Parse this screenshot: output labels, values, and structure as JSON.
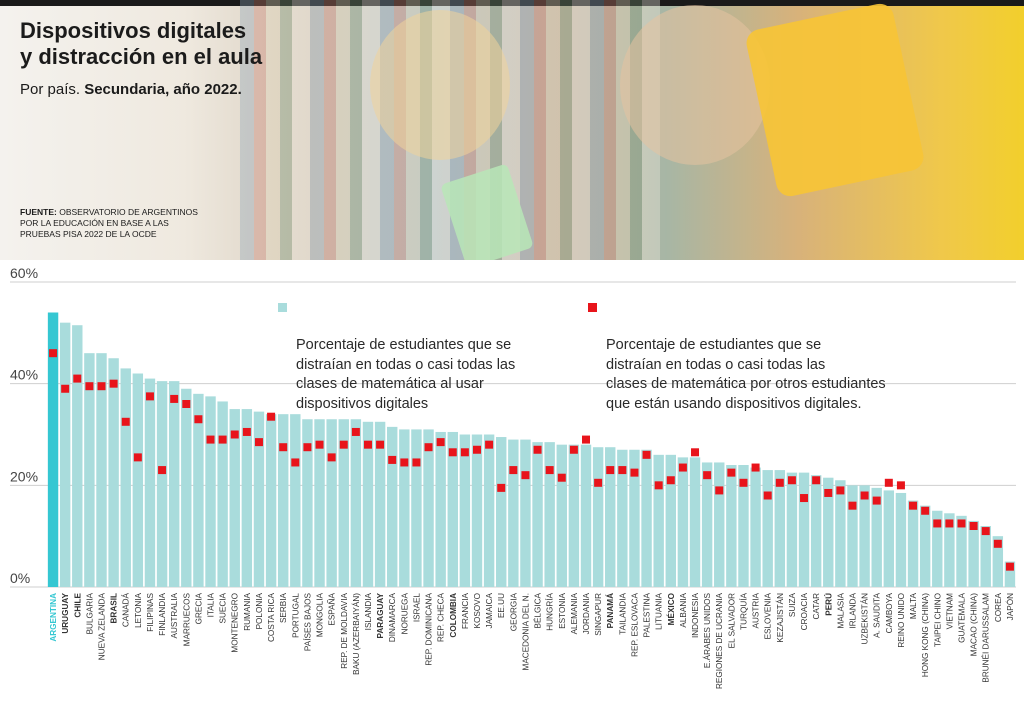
{
  "header": {
    "title": "Dispositivos digitales\ny distracción en el aula",
    "subtitle_prefix": "Por país.",
    "subtitle_bold": "Secundaria, año 2022.",
    "source_label": "FUENTE:",
    "source_text": "OBSERVATORIO DE ARGENTINOS\nPOR LA EDUCACIÓN EN BASE A LAS\nPRUEBAS PISA 2022 DE LA OCDE"
  },
  "colors": {
    "bar": "#a9dcdc",
    "bar_highlight": "#35c7d2",
    "marker": "#e8141b",
    "grid": "#cfcfcf",
    "highlight_label": "#35c7d2"
  },
  "chart_data": {
    "type": "bar",
    "ylim": [
      0,
      60
    ],
    "yticks": [
      "0%",
      "20%",
      "40%",
      "60%"
    ],
    "grid": true,
    "legend_placement": "top-center",
    "categories": [
      "ARGENTINA",
      "URUGUAY",
      "CHILE",
      "BULGARIA",
      "NUEVA ZELANDA",
      "BRASIL",
      "CANADÁ",
      "LETONIA",
      "FILIPINAS",
      "FINLANDIA",
      "AUSTRALIA",
      "MARRUECOS",
      "GRECIA",
      "ITALIA",
      "SUECIA",
      "MONTENEGRO",
      "RUMANIA",
      "POLONIA",
      "COSTA RICA",
      "SERBIA",
      "PORTUGAL",
      "PAÍSES BAJOS",
      "MONGOLIA",
      "ESPAÑA",
      "REP. DE MOLDAVIA",
      "BAKU (AZERBAIYÁN)",
      "ISLANDIA",
      "PARAGUAY",
      "DINAMARCA",
      "NORUEGA",
      "ISRAEL",
      "REP. DOMINICANA",
      "REP. CHECA",
      "COLOMBIA",
      "FRANCIA",
      "KOSOVO",
      "JAMAICA",
      "EE.UU",
      "GEORGIA",
      "MACEDONIA DEL N.",
      "BÉLGICA",
      "HUNGRÍA",
      "ESTONIA",
      "ALEMANIA",
      "JORDANIA",
      "SINGAPUR",
      "PANAMÁ",
      "TAILANDIA",
      "REP. ESLOVACA",
      "PALESTINA",
      "LITUANIA",
      "MÉXICO",
      "ALBANIA",
      "INDONESIA",
      "E.ÁRABES UNIDOS",
      "REGIONES DE UCRANIA",
      "EL SALVADOR",
      "TURQUÍA",
      "AUSTRIA",
      "ESLOVENIA",
      "KEZAJISTÁN",
      "SUIZA",
      "CROACIA",
      "CATAR",
      "PERÚ",
      "MALASIA",
      "IRLANDA",
      "UZBEKISTÁN",
      "A. SAUDITA",
      "CAMBOYA",
      "REINO UNIDO",
      "MALTA",
      "HONG KONG (CHINA)",
      "TAIPEI CHINO",
      "VIETNAM",
      "GUATEMALA",
      "MACAO (CHINA)",
      "BRUNÉI DARUSSALAM",
      "COREA",
      "JAPÓN"
    ],
    "bold_categories": [
      "ARGENTINA",
      "URUGUAY",
      "CHILE",
      "BRASIL",
      "PARAGUAY",
      "COLOMBIA",
      "PANAMÁ",
      "MÉXICO",
      "PERÚ"
    ],
    "highlight_category": "ARGENTINA",
    "series": [
      {
        "name": "Porcentaje de estudiantes que se\ndistraían en todas o casi todas las\nclases de matemática al usar\ndispositivos digitales",
        "values": [
          54,
          52,
          51.5,
          46,
          46,
          45,
          43,
          42,
          41,
          40.5,
          40.5,
          39,
          38,
          37.5,
          36.5,
          35,
          35,
          34.5,
          34,
          34,
          34,
          33,
          33,
          33,
          33,
          33,
          32.5,
          32.5,
          31.5,
          31,
          31,
          31,
          30.5,
          30.5,
          30,
          30,
          30,
          29.5,
          29,
          29,
          28.5,
          28.5,
          28,
          28,
          28,
          27.5,
          27.5,
          27,
          27,
          27,
          26,
          26,
          25.5,
          25.5,
          24.5,
          24.5,
          24,
          24,
          23.5,
          23,
          23,
          22.5,
          22.5,
          22,
          21.5,
          21,
          20,
          20,
          19.5,
          19,
          18.5,
          17,
          16,
          15,
          14.5,
          14,
          13,
          12,
          10,
          5
        ]
      },
      {
        "name": "Porcentaje de estudiantes que se\ndistraían en todas o casi todas las\nclases de matemática por otros estudiantes\nque están usando dispositivos digitales.",
        "values": [
          46,
          39,
          41,
          39.5,
          39.5,
          40,
          32.5,
          25.5,
          37.5,
          23,
          37,
          36,
          33,
          29,
          29,
          30,
          30.5,
          28.5,
          33.5,
          27.5,
          24.5,
          27.5,
          28,
          25.5,
          28,
          30.5,
          28,
          28,
          25,
          24.5,
          24.5,
          27.5,
          28.5,
          26.5,
          26.5,
          27,
          28,
          19.5,
          23,
          22,
          27,
          23,
          21.5,
          27,
          29,
          20.5,
          23,
          23,
          22.5,
          26,
          20,
          21,
          23.5,
          26.5,
          22,
          19,
          22.5,
          20.5,
          23.5,
          18,
          20.5,
          21,
          17.5,
          21,
          18.5,
          19,
          16,
          18,
          17,
          20.5,
          20,
          16,
          15,
          12.5,
          12.5,
          12.5,
          12,
          11,
          8.5,
          4
        ]
      }
    ]
  }
}
